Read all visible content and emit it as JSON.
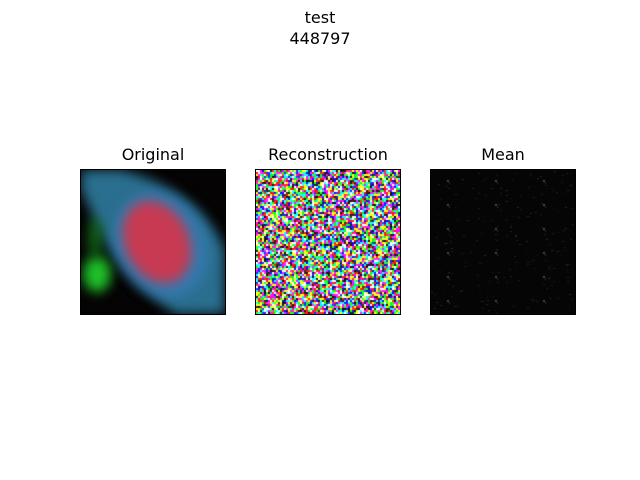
{
  "figure": {
    "suptitle_line1": "test",
    "suptitle_line2": "448797"
  },
  "panels": [
    {
      "title": "Original",
      "kind": "fluorescence-cell-image"
    },
    {
      "title": "Reconstruction",
      "kind": "rgb-noise-image"
    },
    {
      "title": "Mean",
      "kind": "dark-faint-pattern-image"
    }
  ],
  "colors": {
    "background": "#ffffff",
    "frame": "#000000",
    "cell_body": "#2a6f8f",
    "nucleus": "#c83a52",
    "green_blob": "#1fbf2a"
  }
}
